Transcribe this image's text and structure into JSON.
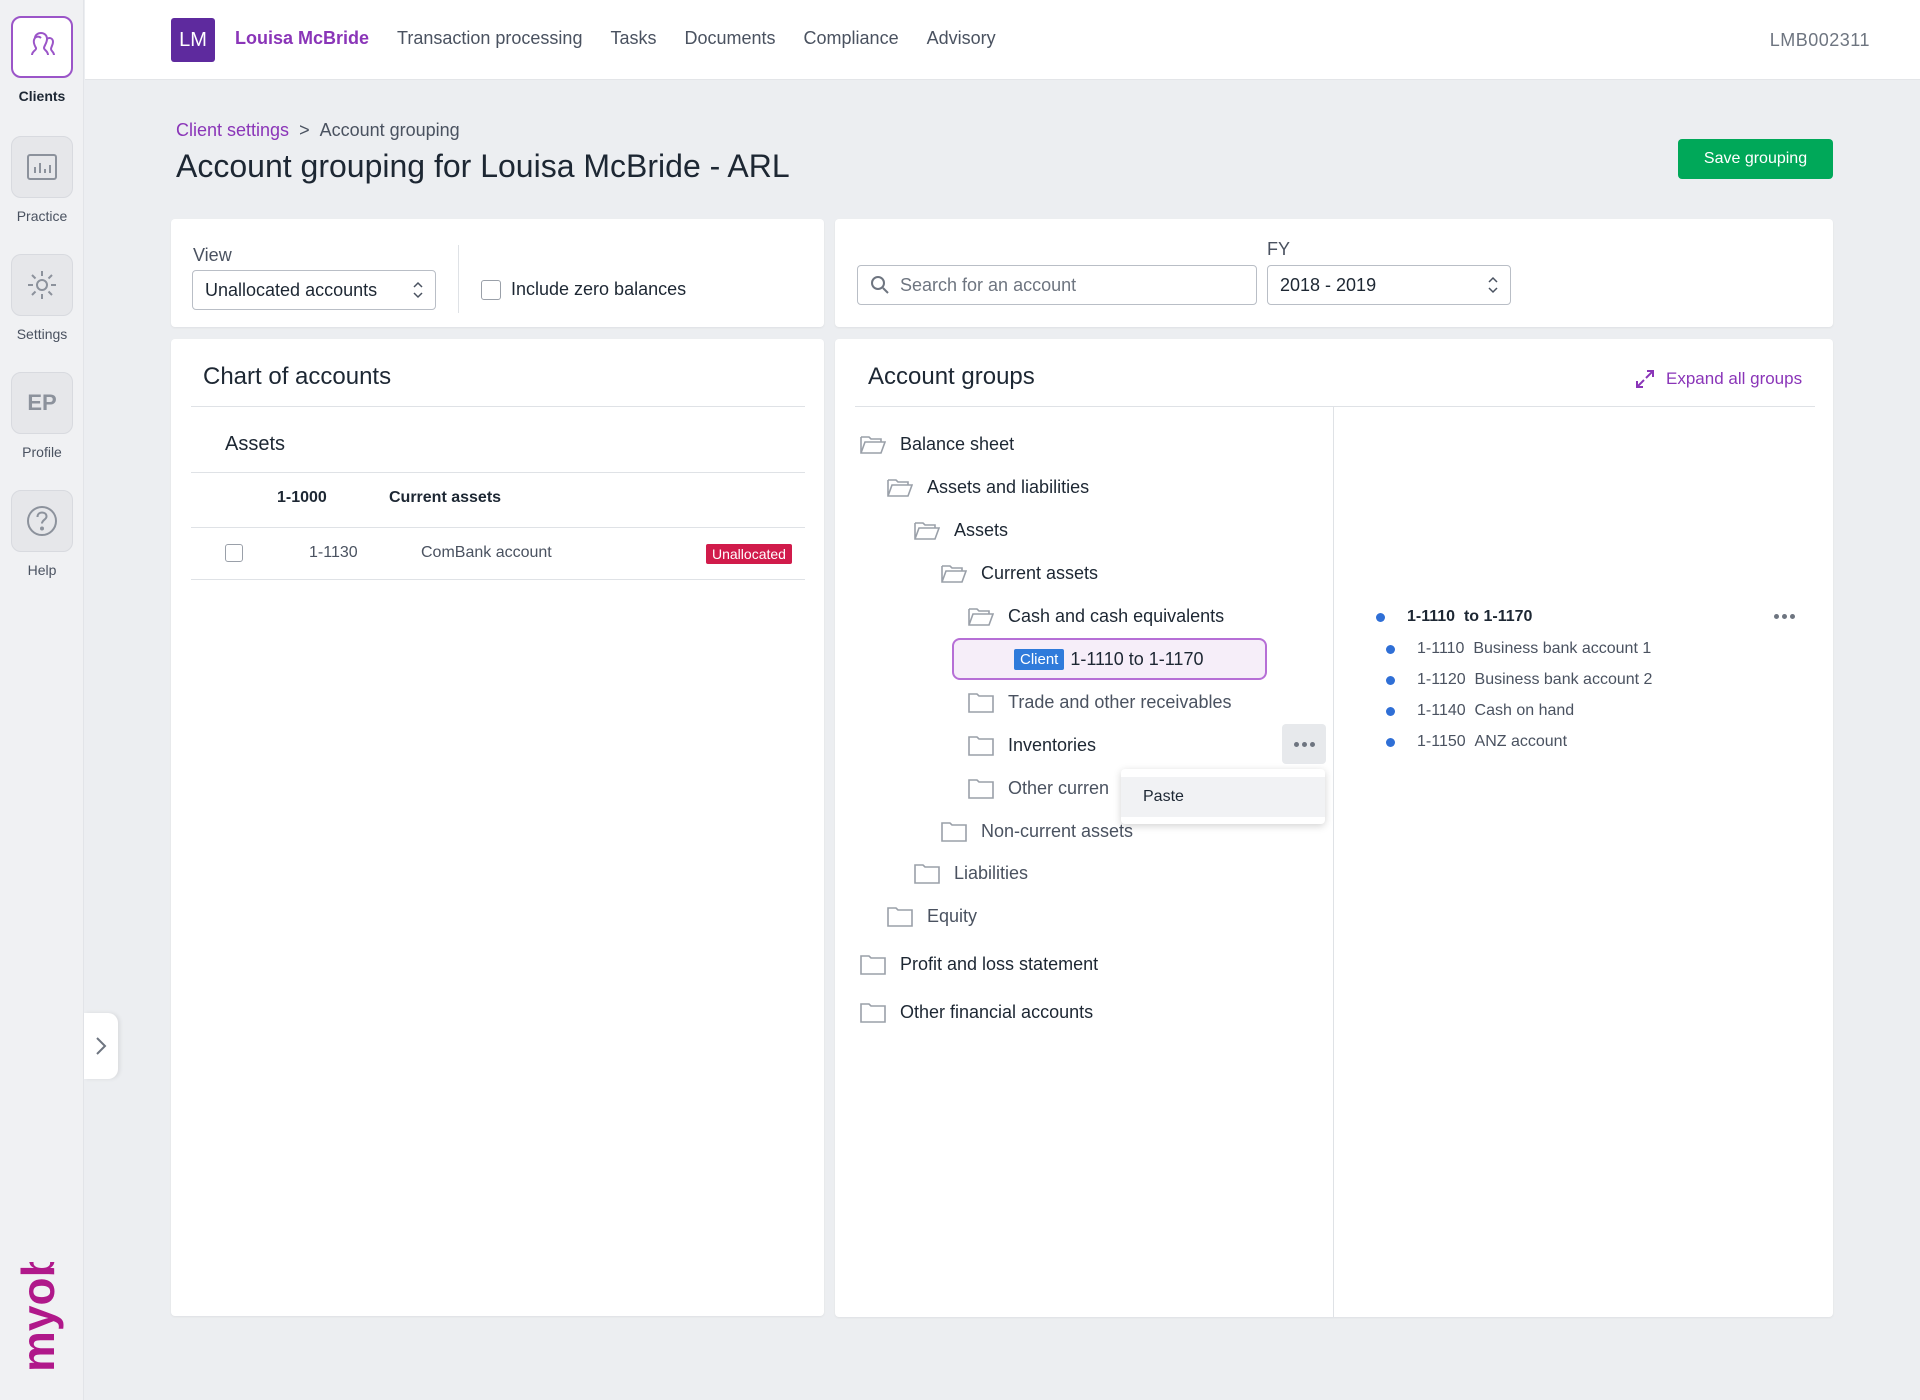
{
  "rail": {
    "items": [
      {
        "label": "Clients",
        "icon": "clients-icon"
      },
      {
        "label": "Practice",
        "icon": "practice-chart-icon"
      },
      {
        "label": "Settings",
        "icon": "gear-icon"
      },
      {
        "label": "Profile",
        "initials": "EP"
      },
      {
        "label": "Help",
        "icon": "help-icon"
      }
    ],
    "brand": "myob"
  },
  "topbar": {
    "avatar_initials": "LM",
    "client_name": "Louisa McBride",
    "nav": [
      "Transaction processing",
      "Tasks",
      "Documents",
      "Compliance",
      "Advisory"
    ],
    "client_code": "LMB002311"
  },
  "breadcrumb": {
    "parent": "Client settings",
    "separator": ">",
    "current": "Account grouping"
  },
  "page_title": "Account grouping for Louisa McBride - ARL",
  "save_label": "Save grouping",
  "filters": {
    "view_label": "View",
    "view_value": "Unallocated accounts",
    "zero_balances_label": "Include zero balances",
    "search_placeholder": "Search for an account",
    "fy_label": "FY",
    "fy_value": "2018 - 2019"
  },
  "chart_of_accounts": {
    "title": "Chart of accounts",
    "section": "Assets",
    "group": {
      "code": "1-1000",
      "name": "Current assets"
    },
    "rows": [
      {
        "code": "1-1130",
        "name": "ComBank account",
        "status": "Unallocated"
      }
    ]
  },
  "account_groups": {
    "title": "Account groups",
    "expand_label": "Expand all groups",
    "tree": {
      "balance_sheet": "Balance sheet",
      "assets_liabilities": "Assets and liabilities",
      "assets": "Assets",
      "current_assets": "Current assets",
      "cash": "Cash and cash equivalents",
      "client_badge": "Client",
      "client_range": "1-1110 to 1-1170",
      "trade": "Trade and other receivables",
      "inventories": "Inventories",
      "other_current": "Other curren",
      "non_current": "Non-current assets",
      "liabilities": "Liabilities",
      "equity": "Equity",
      "profit_loss": "Profit and loss statement",
      "other_financial": "Other financial accounts"
    },
    "context_menu": [
      "Paste"
    ],
    "detail": {
      "range_from": "1-1110",
      "range_to": "to 1-1170",
      "accounts": [
        {
          "code": "1-1110",
          "name": "Business bank account 1"
        },
        {
          "code": "1-1120",
          "name": "Business bank account 2"
        },
        {
          "code": "1-1140",
          "name": "Cash on hand"
        },
        {
          "code": "1-1150",
          "name": "ANZ account"
        }
      ]
    }
  },
  "colors": {
    "brand_purple": "#8a35b8",
    "save_green": "#00a859",
    "unallocated_red": "#d11b4b",
    "client_blue": "#2f7bdb"
  }
}
